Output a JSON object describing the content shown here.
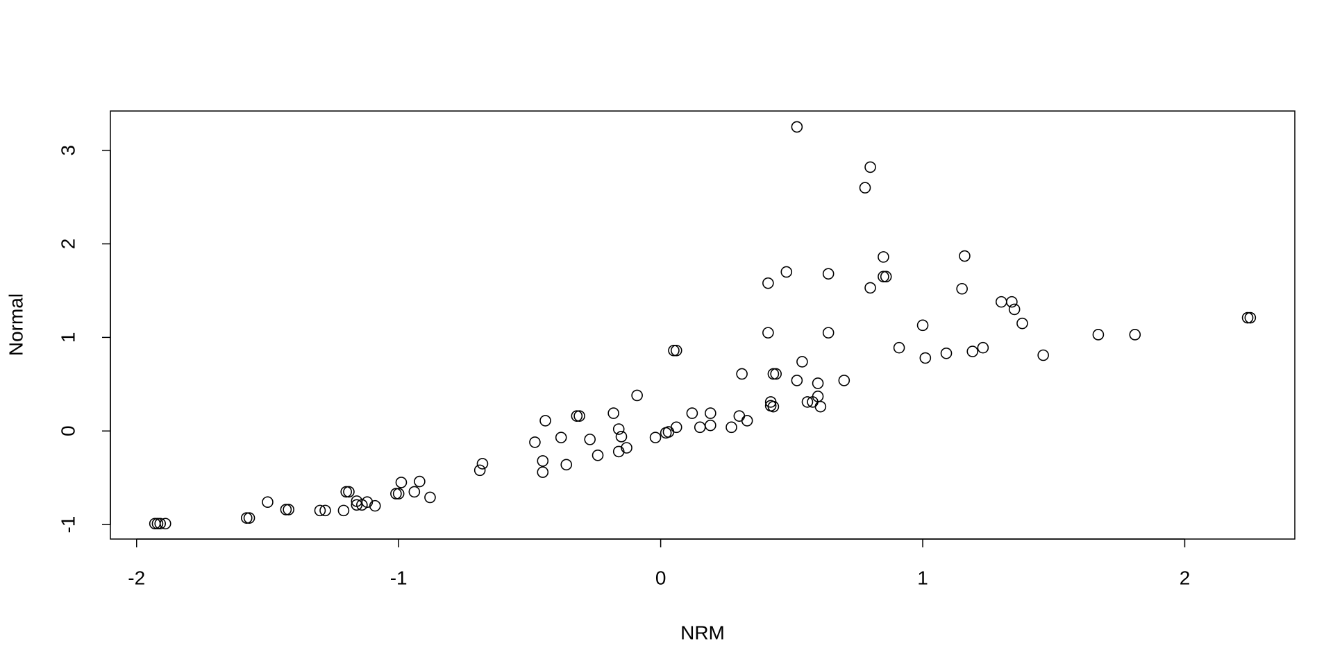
{
  "chart_data": {
    "type": "scatter",
    "x_label": "NRM",
    "y_label": "Normal",
    "x": [
      0.52,
      0.8,
      0.78,
      0.85,
      1.16,
      0.48,
      0.64,
      0.85,
      0.86,
      0.41,
      0.8,
      1.15,
      1.3,
      1.34,
      1.35,
      1.38,
      2.24,
      2.25,
      1.67,
      1.81,
      0.41,
      0.64,
      1.0,
      0.91,
      1.23,
      1.19,
      1.09,
      1.01,
      1.46,
      0.05,
      0.06,
      0.54,
      0.43,
      0.44,
      0.31,
      0.52,
      0.7,
      0.6,
      0.6,
      0.56,
      0.58,
      0.42,
      0.42,
      0.43,
      0.61,
      -0.09,
      -0.18,
      0.12,
      0.19,
      -0.32,
      -0.31,
      0.3,
      0.33,
      -0.44,
      -0.16,
      0.15,
      0.19,
      0.06,
      0.27,
      0.02,
      0.03,
      -0.02,
      -0.38,
      -0.27,
      -0.15,
      -0.48,
      -0.13,
      -0.16,
      -0.24,
      -0.45,
      -0.36,
      -0.68,
      -0.69,
      -0.45,
      -0.99,
      -0.92,
      -0.94,
      -1.01,
      -1.0,
      -0.88,
      -1.2,
      -1.19,
      -1.5,
      -1.16,
      -1.12,
      -1.09,
      -1.16,
      -1.14,
      -1.43,
      -1.42,
      -1.3,
      -1.28,
      -1.21,
      -1.58,
      -1.57,
      -1.93,
      -1.92,
      -1.91,
      -1.89
    ],
    "y": [
      3.25,
      2.82,
      2.6,
      1.86,
      1.87,
      1.7,
      1.68,
      1.65,
      1.65,
      1.58,
      1.53,
      1.52,
      1.38,
      1.38,
      1.3,
      1.15,
      1.21,
      1.21,
      1.03,
      1.03,
      1.05,
      1.05,
      1.13,
      0.89,
      0.89,
      0.85,
      0.83,
      0.78,
      0.81,
      0.86,
      0.86,
      0.74,
      0.61,
      0.61,
      0.61,
      0.54,
      0.54,
      0.51,
      0.37,
      0.31,
      0.31,
      0.31,
      0.27,
      0.26,
      0.26,
      0.38,
      0.19,
      0.19,
      0.19,
      0.16,
      0.16,
      0.16,
      0.11,
      0.11,
      0.02,
      0.04,
      0.06,
      0.04,
      0.04,
      -0.02,
      -0.01,
      -0.07,
      -0.07,
      -0.09,
      -0.06,
      -0.12,
      -0.18,
      -0.22,
      -0.26,
      -0.32,
      -0.36,
      -0.35,
      -0.42,
      -0.44,
      -0.55,
      -0.54,
      -0.65,
      -0.67,
      -0.67,
      -0.71,
      -0.65,
      -0.65,
      -0.76,
      -0.75,
      -0.76,
      -0.8,
      -0.79,
      -0.79,
      -0.84,
      -0.84,
      -0.85,
      -0.85,
      -0.85,
      -0.93,
      -0.93,
      -0.99,
      -0.99,
      -0.99,
      -0.99
    ],
    "color": "#000000",
    "xlim": [
      -2.1,
      2.42
    ],
    "ylim": [
      -1.155,
      3.42
    ],
    "xticks": [
      -2,
      -1,
      0,
      1,
      2
    ],
    "yticks": [
      -1,
      0,
      1,
      2,
      3
    ]
  }
}
